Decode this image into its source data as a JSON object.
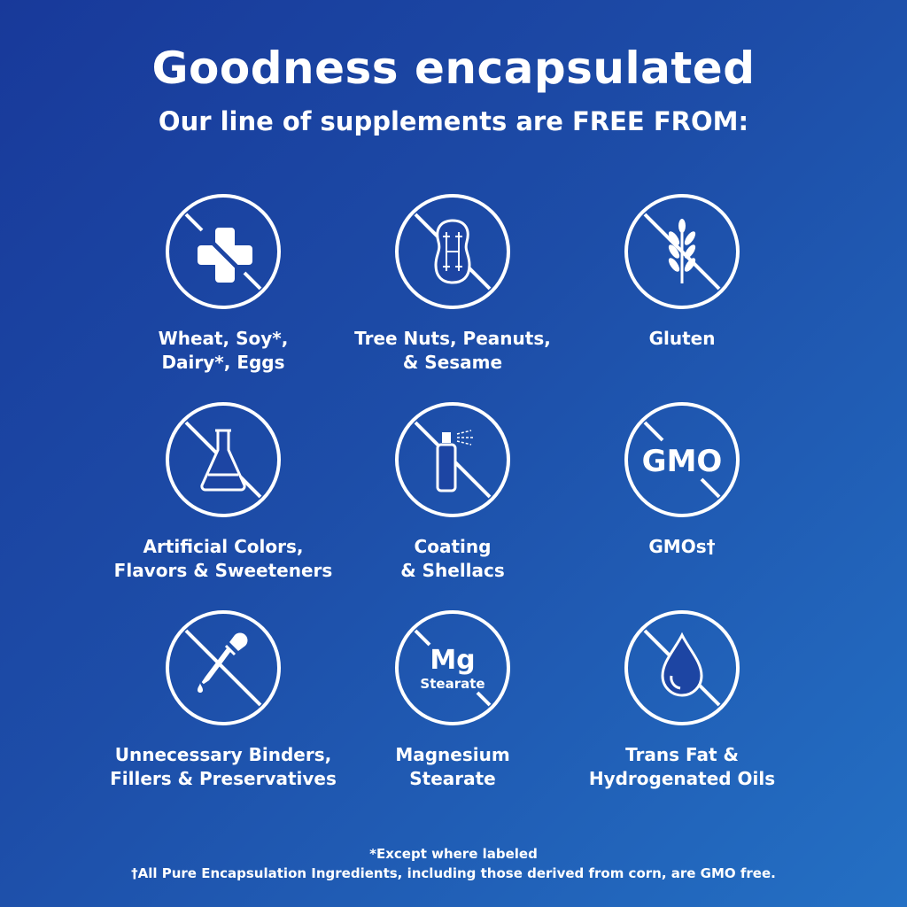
{
  "header": {
    "title": "Goodness encapsulated",
    "subtitle": "Our line of supplements are FREE FROM:"
  },
  "items": [
    {
      "label": "Wheat, Soy*,\nDairy*, Eggs",
      "icon": "allergen-cross-fork-icon"
    },
    {
      "label": "Tree Nuts, Peanuts,\n& Sesame",
      "icon": "peanut-icon"
    },
    {
      "label": "Gluten",
      "icon": "wheat-icon"
    },
    {
      "label": "Artificial Colors,\nFlavors & Sweeteners",
      "icon": "flask-icon"
    },
    {
      "label": "Coating\n& Shellacs",
      "icon": "spray-can-icon"
    },
    {
      "label": "GMOs†",
      "icon": "gmo-icon",
      "icon_text": "GMO"
    },
    {
      "label": "Unnecessary Binders,\nFillers & Preservatives",
      "icon": "dropper-icon"
    },
    {
      "label": "Magnesium\nStearate",
      "icon": "mg-stearate-icon",
      "icon_text": "Mg",
      "icon_subtext": "Stearate"
    },
    {
      "label": "Trans Fat &\nHydrogenated Oils",
      "icon": "oil-drop-icon"
    }
  ],
  "footnotes": {
    "asterisk": "*Except where labeled",
    "dagger": "†All Pure Encapsulation Ingredients, including those derived from corn, are GMO free."
  },
  "colors": {
    "background_start": "#18399a",
    "background_end": "#2470c4",
    "foreground": "#ffffff"
  }
}
